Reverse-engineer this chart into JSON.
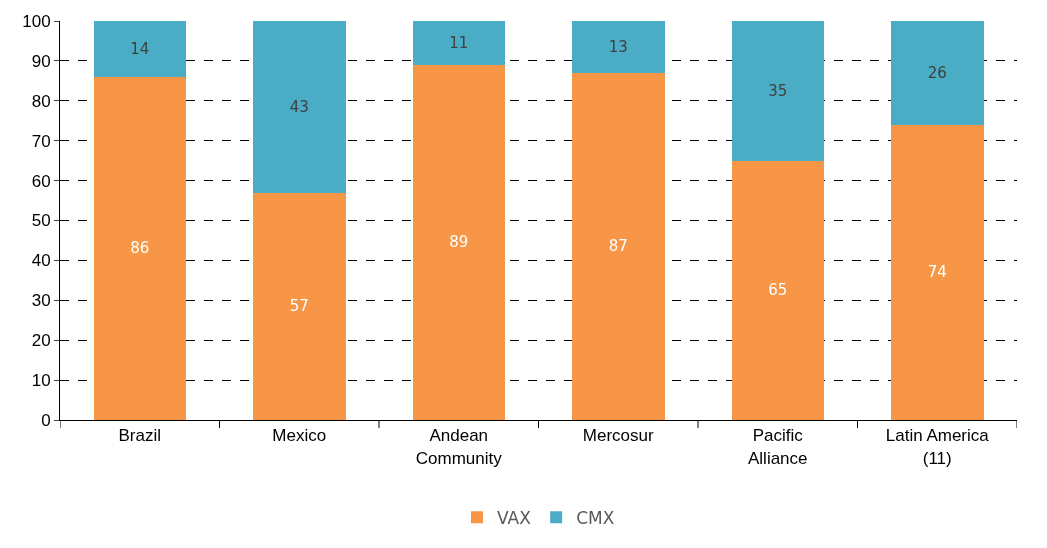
{
  "chart_data": {
    "type": "bar",
    "stacked": true,
    "categories": [
      "Brazil",
      "Mexico",
      "Andean Community",
      "Mercosur",
      "Pacific Alliance",
      "Latin America (11)"
    ],
    "series": [
      {
        "name": "VAX",
        "color": "#f79646",
        "values": [
          86,
          57,
          89,
          87,
          65,
          74
        ]
      },
      {
        "name": "CMX",
        "color": "#4bacc6",
        "values": [
          14,
          43,
          11,
          13,
          35,
          26
        ]
      }
    ],
    "ylim": [
      0,
      100
    ],
    "yticks": [
      0,
      10,
      20,
      30,
      40,
      50,
      60,
      70,
      80,
      90,
      100
    ],
    "grid": "y",
    "legend": "bottom",
    "data_labels": true
  }
}
